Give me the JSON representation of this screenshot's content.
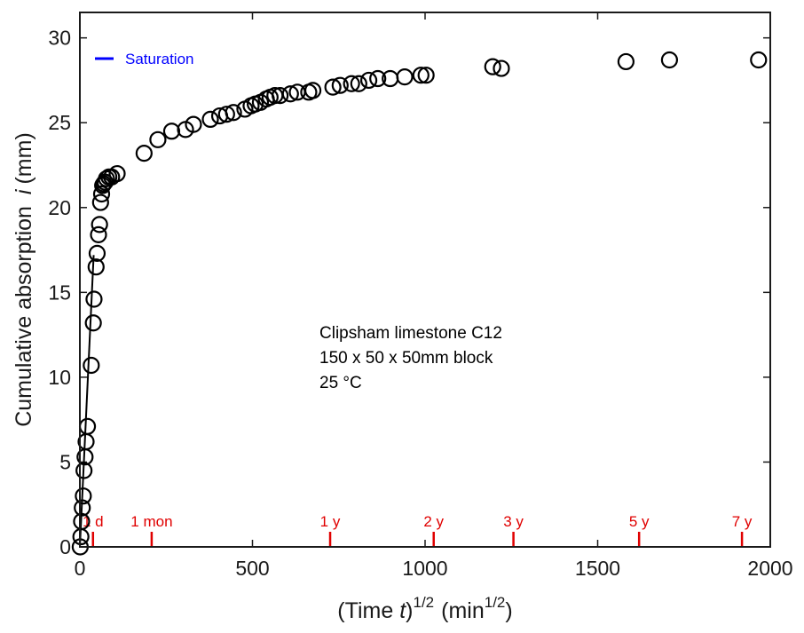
{
  "chart_data": {
    "type": "scatter",
    "xlabel": {
      "prefix": "(Time ",
      "var": "t",
      "mid": ")",
      "sup1": "1/2",
      "unit_pre": "(min",
      "sup2": "1/2",
      "unit_post": ")"
    },
    "ylabel": {
      "prefix": "Cumulative absorption ",
      "var": "i",
      "unit": "(mm)"
    },
    "xlim": [
      0,
      2000
    ],
    "ylim": [
      0,
      31.5
    ],
    "x_ticks": [
      0,
      500,
      1000,
      1500,
      2000
    ],
    "y_ticks": [
      0,
      5,
      10,
      15,
      20,
      25,
      30
    ],
    "x_tick_labels": [
      "0",
      "500",
      "1000",
      "1500",
      "2000"
    ],
    "y_tick_labels": [
      "0",
      "5",
      "10",
      "15",
      "20",
      "25",
      "30"
    ],
    "annotation": [
      "Clipsham limestone C12",
      "150 x 50 x 50mm block",
      "25 °C"
    ],
    "legend": {
      "label": "Saturation",
      "color": "#0000ff",
      "position": "top-left"
    },
    "marker_color": "#000000",
    "time_marker_color": "#e00000",
    "time_markers": [
      {
        "label": "1 d",
        "x": 38
      },
      {
        "label": "1 mon",
        "x": 208
      },
      {
        "label": "1 y",
        "x": 725
      },
      {
        "label": "2 y",
        "x": 1025
      },
      {
        "label": "3 y",
        "x": 1256
      },
      {
        "label": "5 y",
        "x": 1620
      },
      {
        "label": "7 y",
        "x": 1918
      }
    ],
    "fit_line": [
      [
        0,
        0
      ],
      [
        40,
        17.2
      ]
    ],
    "points": [
      [
        1,
        0.0
      ],
      [
        3,
        0.6
      ],
      [
        5,
        1.5
      ],
      [
        7,
        2.3
      ],
      [
        10,
        3.0
      ],
      [
        12,
        4.5
      ],
      [
        15,
        5.3
      ],
      [
        18,
        6.2
      ],
      [
        22,
        7.1
      ],
      [
        33,
        10.7
      ],
      [
        39,
        13.2
      ],
      [
        41,
        14.6
      ],
      [
        47,
        16.5
      ],
      [
        50,
        17.3
      ],
      [
        54,
        18.4
      ],
      [
        57,
        19.0
      ],
      [
        60,
        20.3
      ],
      [
        63,
        20.8
      ],
      [
        66,
        21.3
      ],
      [
        69,
        21.4
      ],
      [
        73,
        21.5
      ],
      [
        77,
        21.7
      ],
      [
        84,
        21.8
      ],
      [
        92,
        21.8
      ],
      [
        108,
        22.0
      ],
      [
        186,
        23.2
      ],
      [
        226,
        24.0
      ],
      [
        266,
        24.5
      ],
      [
        306,
        24.6
      ],
      [
        329,
        24.9
      ],
      [
        378,
        25.2
      ],
      [
        405,
        25.4
      ],
      [
        425,
        25.5
      ],
      [
        445,
        25.6
      ],
      [
        478,
        25.8
      ],
      [
        496,
        26.0
      ],
      [
        508,
        26.1
      ],
      [
        523,
        26.2
      ],
      [
        540,
        26.4
      ],
      [
        551,
        26.5
      ],
      [
        565,
        26.6
      ],
      [
        580,
        26.6
      ],
      [
        610,
        26.7
      ],
      [
        630,
        26.8
      ],
      [
        663,
        26.8
      ],
      [
        675,
        26.9
      ],
      [
        733,
        27.1
      ],
      [
        754,
        27.2
      ],
      [
        787,
        27.3
      ],
      [
        808,
        27.3
      ],
      [
        837,
        27.5
      ],
      [
        863,
        27.6
      ],
      [
        899,
        27.6
      ],
      [
        941,
        27.7
      ],
      [
        988,
        27.8
      ],
      [
        1003,
        27.8
      ],
      [
        1196,
        28.3
      ],
      [
        1221,
        28.2
      ],
      [
        1582,
        28.6
      ],
      [
        1708,
        28.7
      ],
      [
        1966,
        28.7
      ]
    ]
  }
}
